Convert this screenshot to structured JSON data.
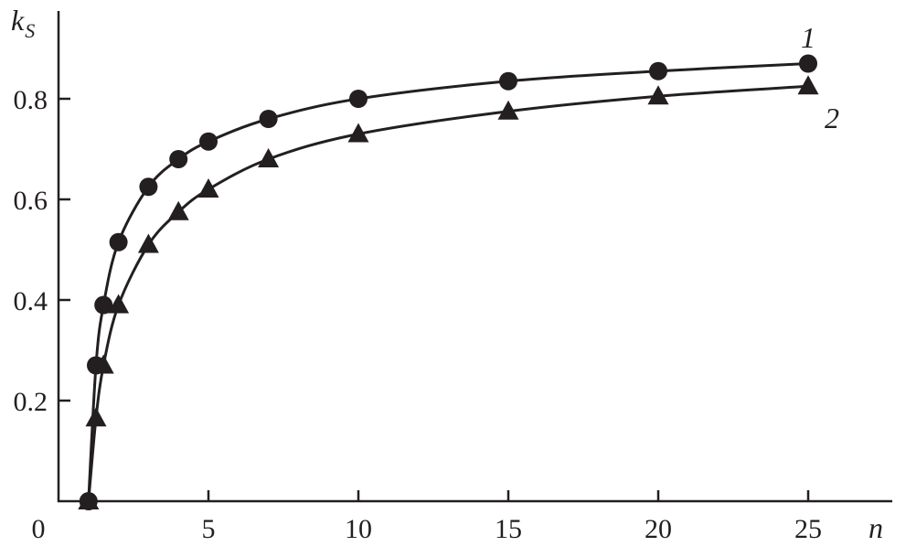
{
  "chart_data": {
    "type": "line",
    "title": "",
    "xlabel": "n",
    "ylabel": "k_S",
    "ylabel_main": "k",
    "ylabel_sub": "S",
    "xlim": [
      0,
      28
    ],
    "ylim": [
      0,
      1.0
    ],
    "x_ticks": [
      0,
      5,
      10,
      15,
      20,
      25
    ],
    "x_tick_labels": [
      "0",
      "5",
      "10",
      "15",
      "20",
      "25"
    ],
    "y_ticks": [
      0.2,
      0.4,
      0.6,
      0.8
    ],
    "y_tick_labels": [
      "0.2",
      "0.4",
      "0.6",
      "0.8"
    ],
    "grid": false,
    "legend": "none; curves labeled inline",
    "color": "#231f20",
    "series": [
      {
        "name": "1",
        "marker": "circle",
        "x": [
          1,
          1.25,
          1.5,
          2,
          3,
          4,
          5,
          7,
          10,
          15,
          20,
          25
        ],
        "y": [
          0,
          0.27,
          0.39,
          0.515,
          0.625,
          0.68,
          0.715,
          0.76,
          0.8,
          0.835,
          0.855,
          0.87
        ]
      },
      {
        "name": "2",
        "marker": "triangle",
        "x": [
          1,
          1.25,
          1.5,
          2,
          3,
          4,
          5,
          7,
          10,
          15,
          20,
          25
        ],
        "y": [
          0,
          0.165,
          0.27,
          0.39,
          0.51,
          0.575,
          0.62,
          0.68,
          0.73,
          0.775,
          0.805,
          0.825
        ]
      }
    ]
  }
}
